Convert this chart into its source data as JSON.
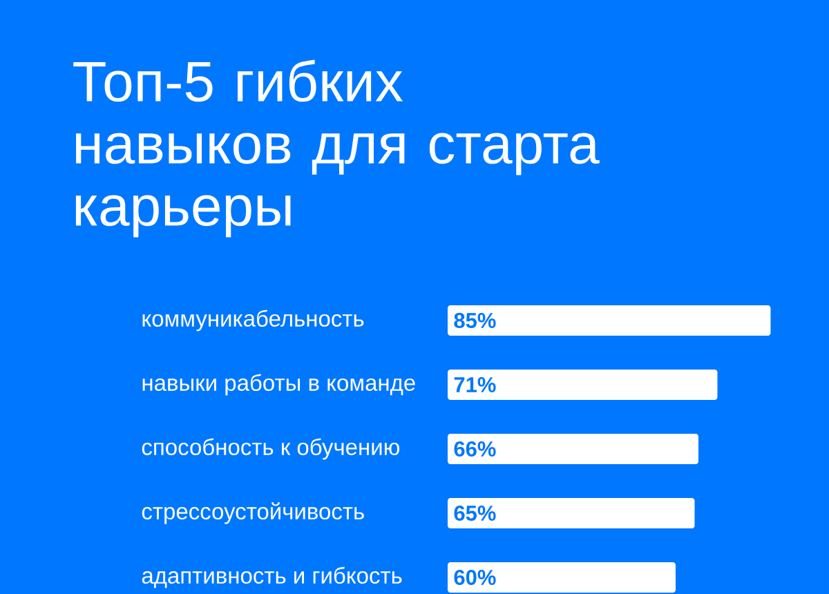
{
  "chart_data": {
    "type": "bar",
    "orientation": "horizontal",
    "title": "Топ-5 гибких навыков для старта карьеры",
    "categories": [
      "коммуникабельность",
      "навыки работы в команде",
      "способность к обучению",
      "стрессоустойчивость",
      "адаптивность и гибкость"
    ],
    "values": [
      85,
      71,
      66,
      65,
      60
    ],
    "value_labels": [
      "85%",
      "71%",
      "66%",
      "65%",
      "60%"
    ],
    "color": "#ffffff",
    "tick_labels": "y"
  }
}
